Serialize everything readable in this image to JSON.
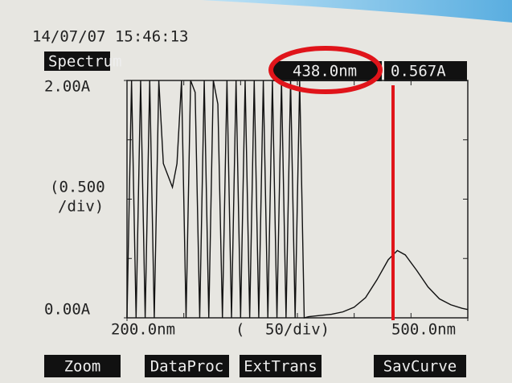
{
  "header": {
    "timestamp": "14/07/07 15:46:13",
    "mode": "Spectrum"
  },
  "cursor": {
    "wavelength": "438.0nm",
    "absorbance": "0.567A"
  },
  "chart_data": {
    "type": "line",
    "x": [
      200,
      204,
      208,
      212,
      216,
      220,
      224,
      228,
      232,
      236,
      240,
      244,
      248,
      252,
      256,
      260,
      264,
      268,
      272,
      276,
      280,
      284,
      288,
      292,
      296,
      300,
      304,
      308,
      312,
      316,
      320,
      324,
      328,
      332,
      336,
      340,
      344,
      348,
      352,
      356,
      360,
      370,
      380,
      390,
      400,
      410,
      420,
      430,
      438,
      445,
      455,
      465,
      475,
      485,
      495,
      500
    ],
    "series": [
      {
        "color": "#111111",
        "values": [
          0,
          2,
          0,
          2,
          0,
          2,
          0,
          2,
          1.3,
          1.2,
          1.1,
          1.3,
          2,
          0,
          2,
          1.9,
          0,
          2,
          0,
          2,
          1.8,
          0,
          2,
          0,
          2,
          0,
          2,
          0,
          2,
          0,
          2,
          0,
          2,
          0,
          2,
          0,
          2,
          0,
          2,
          0,
          0.01,
          0.02,
          0.03,
          0.05,
          0.09,
          0.17,
          0.32,
          0.49,
          0.567,
          0.53,
          0.4,
          0.26,
          0.16,
          0.11,
          0.08,
          0.07
        ]
      }
    ],
    "xlim": [
      200,
      500
    ],
    "xticks": [
      {
        "value": 200,
        "label": "200.0nm"
      },
      {
        "value": 500,
        "label": "500.0nm"
      }
    ],
    "xstep": 50,
    "ylim": [
      0,
      2
    ],
    "yticks": [
      {
        "value": 0,
        "label": "0.00A"
      },
      {
        "value": 2,
        "label": "2.00A"
      }
    ],
    "ystep": 0.5,
    "y_scale_label": [
      "(0.500",
      "/div)"
    ],
    "x_scale_label": [
      "(",
      "50/div)"
    ]
  },
  "softkeys": [
    "Zoom",
    "DataProc",
    "ExtTrans",
    "SavCurve"
  ]
}
